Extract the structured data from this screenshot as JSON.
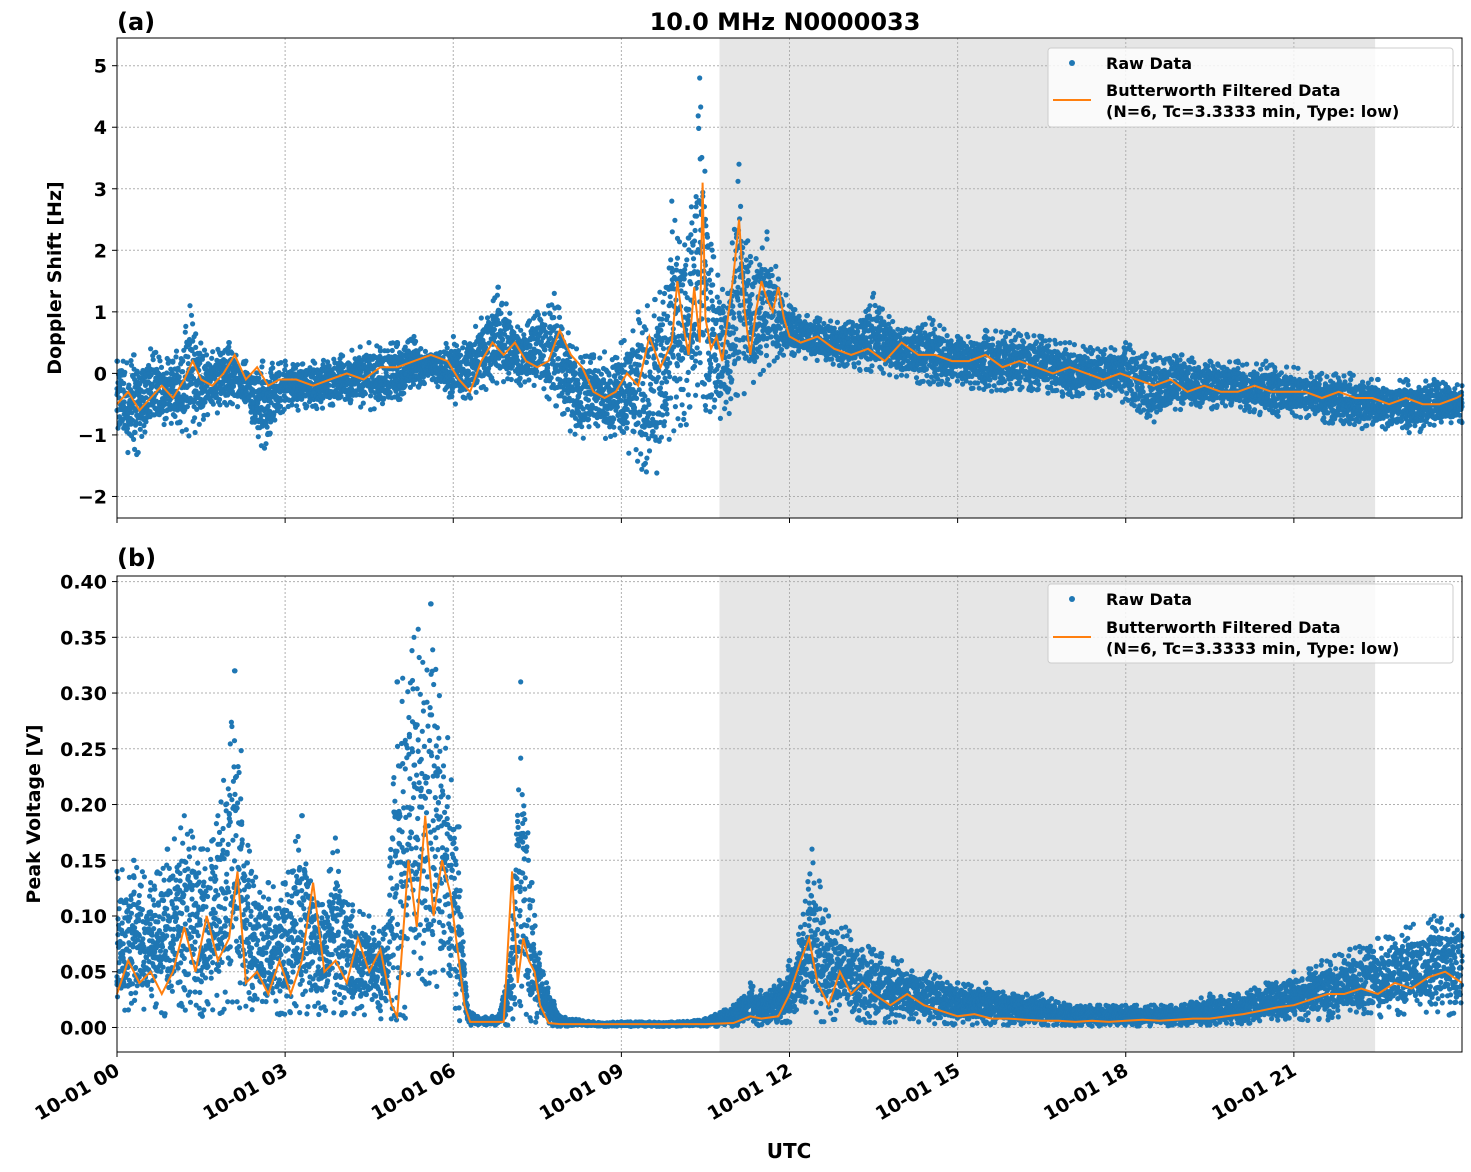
{
  "figure": {
    "title": "10.0 MHz N0000033",
    "xlabel": "UTC",
    "shade_color": "#e6e6e6",
    "raw_color": "#1f77b4",
    "filtered_color": "#ff7f0e",
    "grid_color": "#b0b0b0"
  },
  "chart_data": [
    {
      "type": "scatter",
      "panel_label": "(a)",
      "ylabel": "Doppler Shift [Hz]",
      "x_unit": "hours UTC from 10-01 00:00",
      "xlim": [
        0,
        24
      ],
      "ylim": [
        -2.35,
        5.45
      ],
      "yticks": [
        -2,
        -1,
        0,
        1,
        2,
        3,
        4,
        5
      ],
      "yticklabels": [
        "−2",
        "−1",
        "0",
        "1",
        "2",
        "3",
        "4",
        "5"
      ],
      "xticks": [
        0,
        3,
        6,
        9,
        12,
        15,
        18,
        21
      ],
      "xticklabels": [
        "10-01 00",
        "10-01 03",
        "10-01 06",
        "10-01 09",
        "10-01 12",
        "10-01 15",
        "10-01 18",
        "10-01 21"
      ],
      "shaded_region": [
        10.75,
        22.45
      ],
      "grid": true,
      "legend_position": "top-right",
      "legend": [
        "Raw Data",
        "Butterworth Filtered Data\n(N=6, Tc=3.3333 min, Type: low)"
      ],
      "series": [
        {
          "name": "Raw Data",
          "kind": "scatter",
          "envelope_x": [
            0,
            0.3,
            0.6,
            1.0,
            1.3,
            1.6,
            2.0,
            2.3,
            2.6,
            3.0,
            3.5,
            4.0,
            4.5,
            5.0,
            5.3,
            5.6,
            6.0,
            6.2,
            6.5,
            6.8,
            7.2,
            7.5,
            7.8,
            8.2,
            8.5,
            9.0,
            9.3,
            9.6,
            9.9,
            10.2,
            10.4,
            10.6,
            10.9,
            11.1,
            11.3,
            11.6,
            12.0,
            12.5,
            13.0,
            13.5,
            14.0,
            14.5,
            15.0,
            15.5,
            16.0,
            16.5,
            17.0,
            17.5,
            18.0,
            18.5,
            19.0,
            19.5,
            20.0,
            20.5,
            21.0,
            21.5,
            22.0,
            22.5,
            23.0,
            23.5,
            24.0
          ],
          "envelope_low": [
            -1.1,
            -1.4,
            -1.0,
            -0.8,
            -1.1,
            -0.7,
            -0.6,
            -0.5,
            -1.3,
            -0.6,
            -0.6,
            -0.5,
            -0.6,
            -0.5,
            -0.3,
            -0.1,
            -0.5,
            -0.5,
            -0.3,
            -0.2,
            -0.2,
            -0.3,
            -0.7,
            -1.1,
            -1.0,
            -1.2,
            -1.5,
            -1.8,
            -1.1,
            -0.8,
            -0.9,
            -1.1,
            -0.8,
            -0.5,
            -0.3,
            0.0,
            0.3,
            0.2,
            0.1,
            0.0,
            -0.1,
            -0.2,
            -0.2,
            -0.3,
            -0.3,
            -0.3,
            -0.4,
            -0.4,
            -0.5,
            -0.8,
            -0.6,
            -0.6,
            -0.6,
            -0.7,
            -0.7,
            -0.8,
            -0.9,
            -0.9,
            -1.0,
            -0.9,
            -0.8
          ],
          "envelope_high": [
            0.2,
            0.3,
            0.4,
            0.2,
            1.1,
            0.3,
            0.5,
            0.2,
            0.2,
            0.2,
            0.2,
            0.3,
            0.5,
            0.5,
            0.6,
            0.3,
            0.6,
            0.5,
            0.9,
            1.4,
            0.7,
            1.0,
            1.3,
            0.4,
            0.3,
            0.5,
            1.0,
            1.2,
            2.8,
            2.2,
            4.8,
            2.1,
            1.3,
            3.4,
            1.9,
            2.3,
            1.1,
            0.9,
            0.8,
            1.3,
            0.7,
            0.9,
            0.6,
            0.7,
            0.7,
            0.6,
            0.5,
            0.4,
            0.5,
            0.3,
            0.3,
            0.2,
            0.2,
            0.2,
            0.1,
            0.0,
            0.0,
            -0.1,
            -0.1,
            -0.1,
            -0.2
          ]
        },
        {
          "name": "Butterworth Filtered Data\n(N=6, Tc=3.3333 min, Type: low)",
          "kind": "line",
          "x": [
            0,
            0.2,
            0.4,
            0.6,
            0.8,
            1.0,
            1.2,
            1.35,
            1.5,
            1.7,
            1.9,
            2.1,
            2.3,
            2.5,
            2.7,
            2.9,
            3.2,
            3.5,
            3.8,
            4.1,
            4.4,
            4.7,
            5.0,
            5.3,
            5.6,
            5.9,
            6.1,
            6.3,
            6.5,
            6.7,
            6.9,
            7.1,
            7.3,
            7.5,
            7.7,
            7.9,
            8.1,
            8.3,
            8.5,
            8.7,
            8.9,
            9.1,
            9.3,
            9.5,
            9.7,
            9.9,
            10.0,
            10.1,
            10.2,
            10.3,
            10.4,
            10.45,
            10.5,
            10.6,
            10.7,
            10.8,
            10.9,
            11.0,
            11.1,
            11.2,
            11.3,
            11.4,
            11.5,
            11.6,
            11.7,
            11.8,
            11.9,
            12.0,
            12.2,
            12.5,
            12.8,
            13.1,
            13.4,
            13.7,
            14.0,
            14.3,
            14.6,
            14.9,
            15.2,
            15.5,
            15.8,
            16.1,
            16.4,
            16.7,
            17.0,
            17.3,
            17.6,
            17.9,
            18.2,
            18.5,
            18.8,
            19.1,
            19.4,
            19.7,
            20.0,
            20.3,
            20.6,
            20.9,
            21.2,
            21.5,
            21.8,
            22.1,
            22.4,
            22.7,
            23.0,
            23.3,
            23.6,
            23.9,
            24.0
          ],
          "y": [
            -0.5,
            -0.3,
            -0.6,
            -0.4,
            -0.2,
            -0.4,
            -0.1,
            0.2,
            -0.1,
            -0.2,
            0.0,
            0.3,
            -0.1,
            0.1,
            -0.2,
            -0.1,
            -0.1,
            -0.2,
            -0.1,
            0.0,
            -0.1,
            0.1,
            0.1,
            0.2,
            0.3,
            0.2,
            -0.1,
            -0.3,
            0.2,
            0.5,
            0.3,
            0.5,
            0.2,
            0.1,
            0.2,
            0.7,
            0.3,
            0.1,
            -0.3,
            -0.4,
            -0.3,
            0.0,
            -0.2,
            0.6,
            0.1,
            0.5,
            1.5,
            0.8,
            0.3,
            1.4,
            0.5,
            3.1,
            0.9,
            0.4,
            0.6,
            0.2,
            0.9,
            1.6,
            2.5,
            1.0,
            0.3,
            1.0,
            1.5,
            1.2,
            1.0,
            1.4,
            0.9,
            0.6,
            0.5,
            0.6,
            0.4,
            0.3,
            0.4,
            0.2,
            0.5,
            0.3,
            0.3,
            0.2,
            0.2,
            0.3,
            0.1,
            0.2,
            0.1,
            0.0,
            0.1,
            0.0,
            -0.1,
            0.0,
            -0.1,
            -0.2,
            -0.1,
            -0.3,
            -0.2,
            -0.3,
            -0.3,
            -0.2,
            -0.3,
            -0.3,
            -0.3,
            -0.4,
            -0.3,
            -0.4,
            -0.4,
            -0.5,
            -0.4,
            -0.5,
            -0.5,
            -0.4,
            -0.35
          ]
        }
      ]
    },
    {
      "type": "scatter",
      "panel_label": "(b)",
      "ylabel": "Peak Voltage [V]",
      "x_unit": "hours UTC from 10-01 00:00",
      "xlim": [
        0,
        24
      ],
      "ylim": [
        -0.022,
        0.405
      ],
      "yticks": [
        0.0,
        0.05,
        0.1,
        0.15,
        0.2,
        0.25,
        0.3,
        0.35,
        0.4
      ],
      "yticklabels": [
        "0.00",
        "0.05",
        "0.10",
        "0.15",
        "0.20",
        "0.25",
        "0.30",
        "0.35",
        "0.40"
      ],
      "xticks": [
        0,
        3,
        6,
        9,
        12,
        15,
        18,
        21
      ],
      "xticklabels": [
        "10-01 00",
        "10-01 03",
        "10-01 06",
        "10-01 09",
        "10-01 12",
        "10-01 15",
        "10-01 18",
        "10-01 21"
      ],
      "shaded_region": [
        10.75,
        22.45
      ],
      "grid": true,
      "legend_position": "top-right",
      "legend": [
        "Raw Data",
        "Butterworth Filtered Data\n(N=6, Tc=3.3333 min, Type: low)"
      ],
      "series": [
        {
          "name": "Raw Data",
          "kind": "scatter",
          "envelope_x": [
            0,
            0.3,
            0.6,
            0.9,
            1.2,
            1.5,
            1.8,
            2.1,
            2.4,
            2.7,
            3.0,
            3.3,
            3.6,
            3.9,
            4.2,
            4.5,
            4.8,
            5.0,
            5.3,
            5.6,
            5.9,
            6.1,
            6.25,
            6.4,
            6.8,
            7.0,
            7.2,
            7.4,
            7.6,
            7.9,
            8.5,
            9.0,
            9.5,
            10.0,
            10.5,
            11.0,
            11.3,
            11.6,
            12.0,
            12.2,
            12.4,
            12.7,
            13.0,
            13.5,
            14.0,
            14.5,
            15.0,
            15.5,
            16.0,
            16.5,
            17.0,
            17.5,
            18.0,
            18.5,
            19.0,
            19.5,
            20.0,
            20.5,
            21.0,
            21.5,
            22.0,
            22.5,
            23.0,
            23.5,
            24.0
          ],
          "envelope_low": [
            0.01,
            0.01,
            0.01,
            0.01,
            0.01,
            0.01,
            0.01,
            0.01,
            0.01,
            0.01,
            0.01,
            0.01,
            0.01,
            0.01,
            0.01,
            0.01,
            0.005,
            0.005,
            0.01,
            0.01,
            0.01,
            0.005,
            0.002,
            0.002,
            0.002,
            0.002,
            0.002,
            0.002,
            0.002,
            0.001,
            0.001,
            0.001,
            0.001,
            0.001,
            0.001,
            0.001,
            0.001,
            0.002,
            0.003,
            0.005,
            0.005,
            0.005,
            0.005,
            0.004,
            0.004,
            0.003,
            0.002,
            0.002,
            0.002,
            0.002,
            0.001,
            0.001,
            0.001,
            0.001,
            0.002,
            0.002,
            0.003,
            0.004,
            0.005,
            0.006,
            0.007,
            0.008,
            0.01,
            0.01,
            0.01
          ],
          "envelope_high": [
            0.14,
            0.15,
            0.13,
            0.16,
            0.19,
            0.16,
            0.19,
            0.32,
            0.14,
            0.13,
            0.13,
            0.19,
            0.11,
            0.17,
            0.11,
            0.1,
            0.09,
            0.31,
            0.35,
            0.38,
            0.26,
            0.18,
            0.02,
            0.01,
            0.01,
            0.06,
            0.31,
            0.13,
            0.05,
            0.01,
            0.005,
            0.005,
            0.005,
            0.005,
            0.008,
            0.02,
            0.04,
            0.03,
            0.06,
            0.09,
            0.16,
            0.1,
            0.09,
            0.07,
            0.06,
            0.05,
            0.04,
            0.04,
            0.03,
            0.03,
            0.02,
            0.02,
            0.02,
            0.02,
            0.02,
            0.03,
            0.03,
            0.04,
            0.05,
            0.06,
            0.07,
            0.08,
            0.09,
            0.1,
            0.1
          ]
        },
        {
          "name": "Butterworth Filtered Data\n(N=6, Tc=3.3333 min, Type: low)",
          "kind": "line",
          "x": [
            0,
            0.2,
            0.4,
            0.6,
            0.8,
            1.0,
            1.2,
            1.4,
            1.6,
            1.8,
            2.0,
            2.15,
            2.3,
            2.5,
            2.7,
            2.9,
            3.1,
            3.3,
            3.5,
            3.7,
            3.9,
            4.1,
            4.3,
            4.5,
            4.7,
            4.9,
            5.0,
            5.2,
            5.35,
            5.5,
            5.65,
            5.8,
            5.95,
            6.1,
            6.2,
            6.3,
            6.6,
            6.9,
            7.05,
            7.15,
            7.25,
            7.35,
            7.45,
            7.55,
            7.7,
            7.9,
            8.5,
            9.0,
            9.5,
            10.0,
            10.5,
            11.0,
            11.3,
            11.5,
            11.8,
            12.0,
            12.2,
            12.35,
            12.5,
            12.7,
            12.9,
            13.1,
            13.3,
            13.5,
            13.8,
            14.1,
            14.4,
            14.7,
            15.0,
            15.3,
            15.6,
            15.9,
            16.2,
            16.5,
            16.8,
            17.1,
            17.4,
            17.7,
            18.0,
            18.3,
            18.6,
            18.9,
            19.2,
            19.5,
            19.8,
            20.1,
            20.4,
            20.7,
            21.0,
            21.3,
            21.6,
            21.9,
            22.2,
            22.5,
            22.8,
            23.1,
            23.4,
            23.7,
            24.0
          ],
          "y": [
            0.03,
            0.06,
            0.04,
            0.05,
            0.03,
            0.05,
            0.09,
            0.05,
            0.1,
            0.06,
            0.08,
            0.14,
            0.04,
            0.05,
            0.03,
            0.06,
            0.03,
            0.06,
            0.13,
            0.05,
            0.06,
            0.04,
            0.08,
            0.05,
            0.07,
            0.02,
            0.01,
            0.15,
            0.09,
            0.19,
            0.1,
            0.15,
            0.12,
            0.06,
            0.02,
            0.005,
            0.005,
            0.005,
            0.14,
            0.04,
            0.08,
            0.06,
            0.05,
            0.02,
            0.004,
            0.003,
            0.003,
            0.003,
            0.003,
            0.003,
            0.003,
            0.004,
            0.01,
            0.008,
            0.01,
            0.03,
            0.06,
            0.08,
            0.04,
            0.02,
            0.05,
            0.03,
            0.04,
            0.03,
            0.02,
            0.03,
            0.02,
            0.015,
            0.01,
            0.012,
            0.008,
            0.008,
            0.007,
            0.006,
            0.006,
            0.005,
            0.006,
            0.005,
            0.006,
            0.007,
            0.006,
            0.007,
            0.008,
            0.008,
            0.01,
            0.012,
            0.015,
            0.018,
            0.02,
            0.025,
            0.03,
            0.03,
            0.035,
            0.03,
            0.04,
            0.035,
            0.045,
            0.05,
            0.04
          ]
        }
      ]
    }
  ]
}
